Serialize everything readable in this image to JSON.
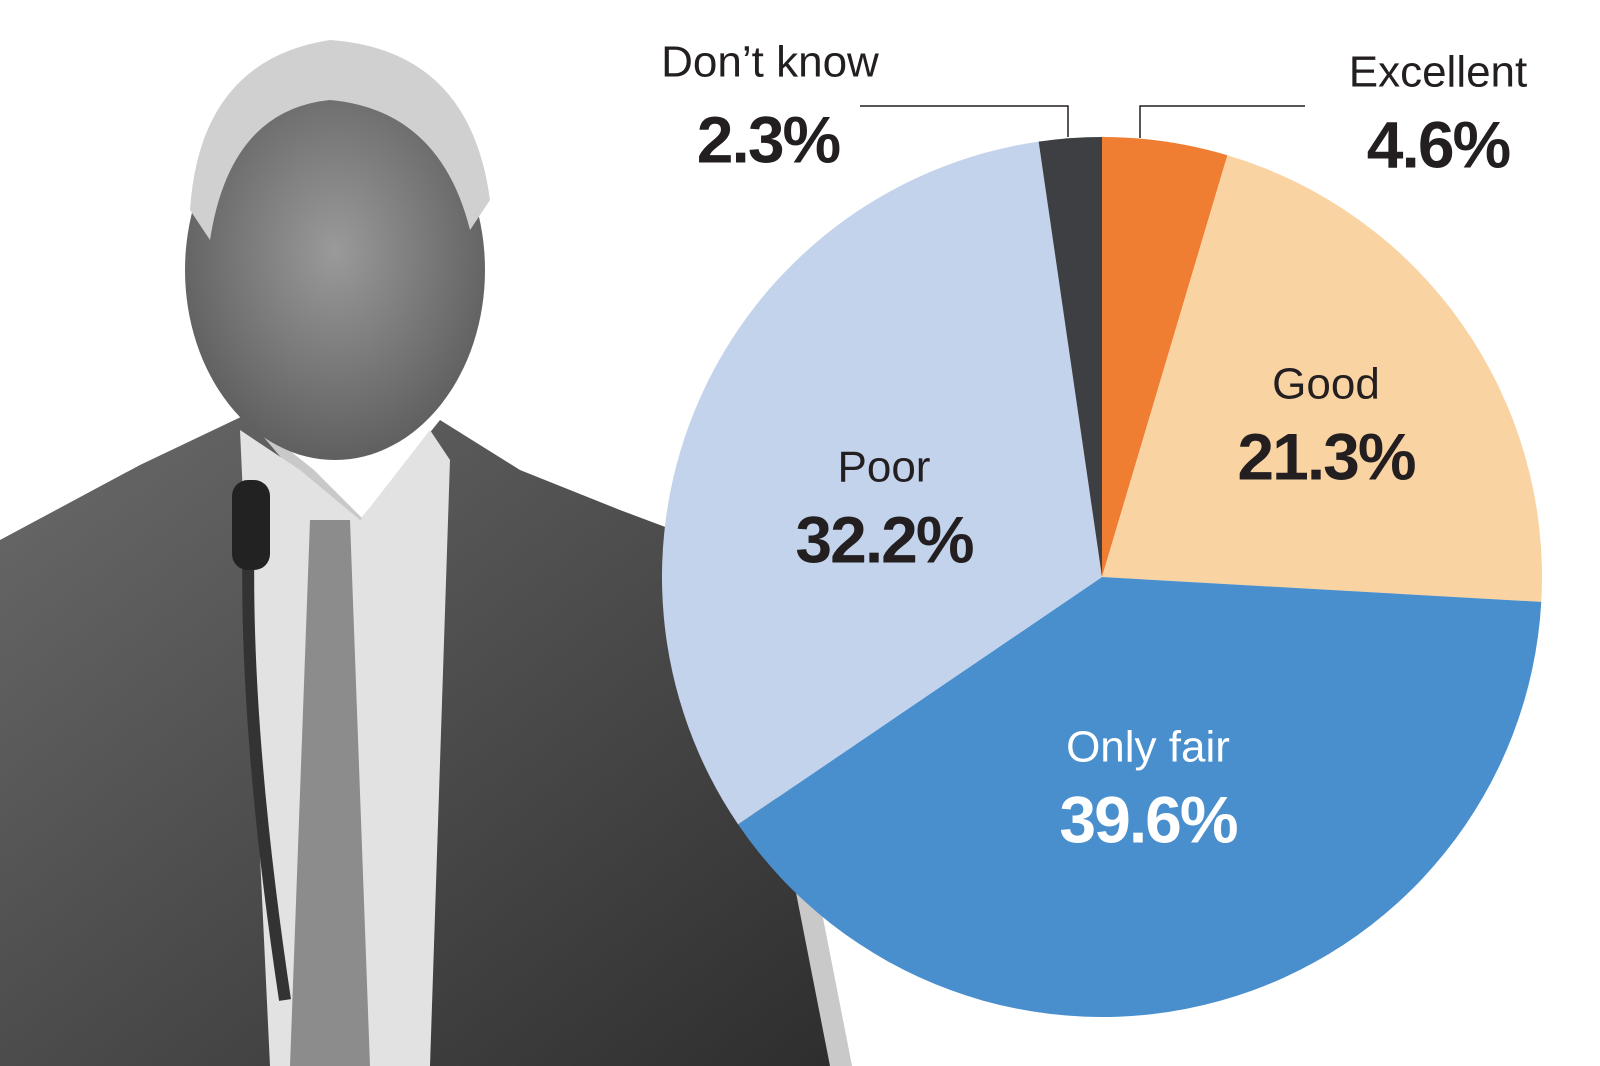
{
  "chart_data": {
    "type": "pie",
    "categories": [
      "Excellent",
      "Good",
      "Only fair",
      "Poor",
      "Don’t know"
    ],
    "values": [
      4.6,
      21.3,
      39.6,
      32.2,
      2.3
    ],
    "value_labels": [
      "4.6%",
      "21.3%",
      "39.6%",
      "32.2%",
      "2.3%"
    ],
    "colors": [
      "#f07e32",
      "#fad3a3",
      "#4a8fcd",
      "#c3d3ec",
      "#3e3f43"
    ]
  }
}
